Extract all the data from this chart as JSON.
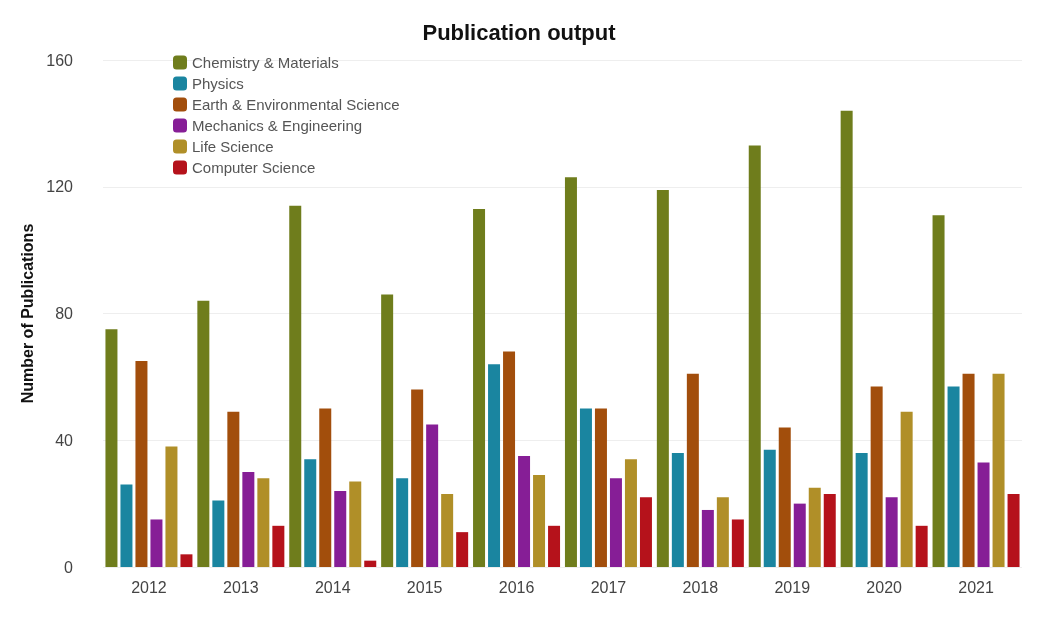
{
  "chart_data": {
    "type": "bar",
    "title": "Publication output",
    "ylabel": "Number of Publications",
    "categories": [
      "2012",
      "2013",
      "2014",
      "2015",
      "2016",
      "2017",
      "2018",
      "2019",
      "2020",
      "2021"
    ],
    "series": [
      {
        "name": "Chemistry & Materials",
        "color": "#6f7d1c",
        "values": [
          75,
          84,
          114,
          86,
          113,
          123,
          119,
          133,
          144,
          111
        ]
      },
      {
        "name": "Physics",
        "color": "#1a85a0",
        "values": [
          26,
          21,
          34,
          28,
          64,
          50,
          36,
          37,
          36,
          57
        ]
      },
      {
        "name": "Earth & Environmental Science",
        "color": "#a24e0c",
        "values": [
          65,
          49,
          50,
          56,
          68,
          50,
          61,
          44,
          57,
          61
        ]
      },
      {
        "name": "Mechanics & Engineering",
        "color": "#861e96",
        "values": [
          15,
          30,
          24,
          45,
          35,
          28,
          18,
          20,
          22,
          33
        ]
      },
      {
        "name": "Life Science",
        "color": "#b08f28",
        "values": [
          38,
          28,
          27,
          23,
          29,
          34,
          22,
          25,
          49,
          61
        ]
      },
      {
        "name": "Computer Science",
        "color": "#b5121b",
        "values": [
          4,
          13,
          2,
          11,
          13,
          22,
          15,
          23,
          13,
          23
        ]
      }
    ],
    "ylim": [
      0,
      160
    ],
    "yticks": [
      0,
      40,
      80,
      120,
      160
    ],
    "grid": "y",
    "legend": "top left"
  }
}
